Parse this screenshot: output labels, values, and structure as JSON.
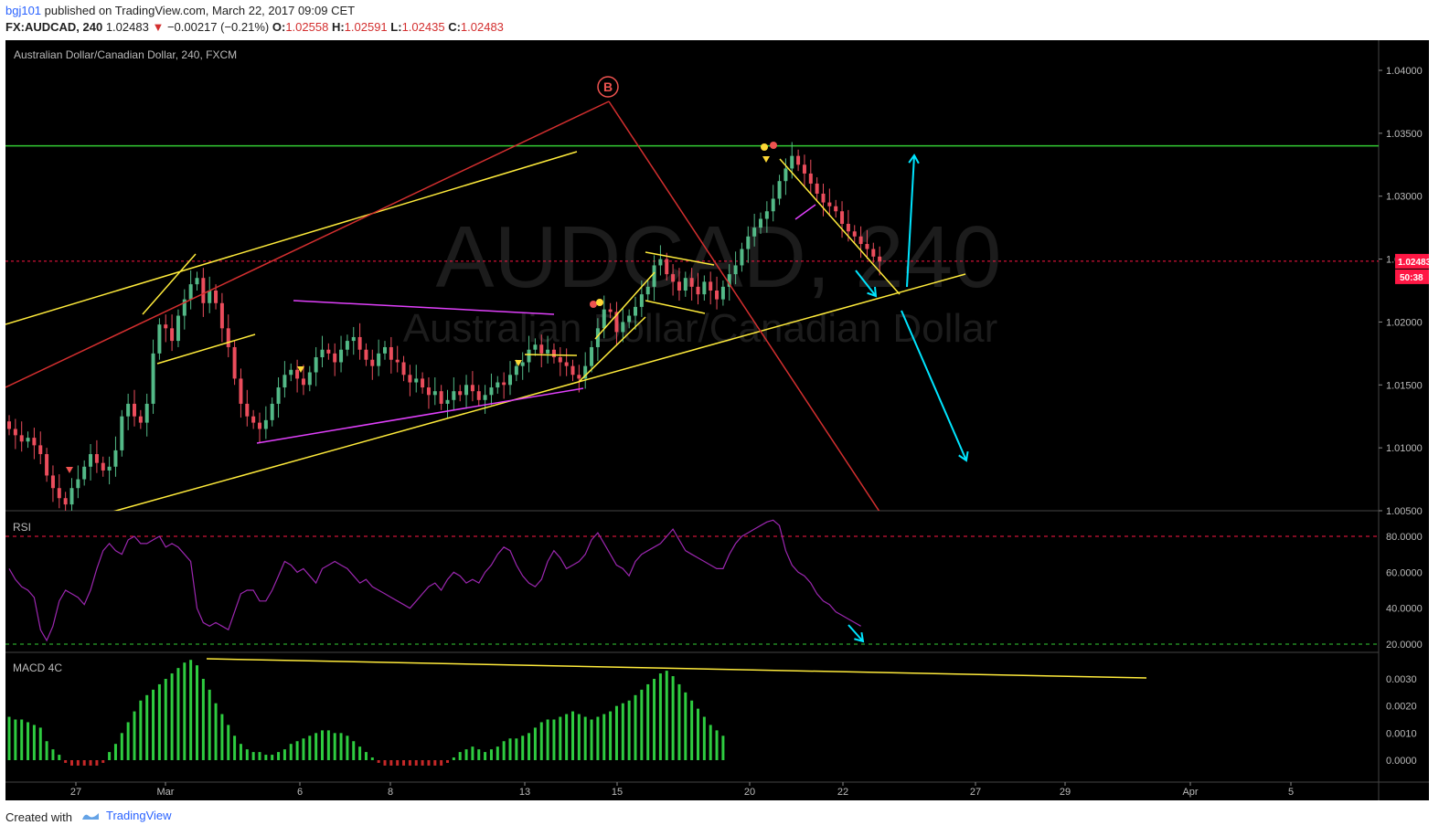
{
  "header": {
    "user": "bgj101",
    "published_text": "published on TradingView.com, March 22, 2017 09:09 CET",
    "symbol": "FX:AUDCAD, 240",
    "last": "1.02483",
    "change": "−0.00217 (−0.21%)",
    "o_label": "O:",
    "o_value": "1.02558",
    "h_label": "H:",
    "h_value": "1.02591",
    "l_label": "L:",
    "l_value": "1.02435",
    "c_label": "C:",
    "c_value": "1.02483"
  },
  "watermark": {
    "big": "AUDCAD, 240",
    "sub": "Australian Dollar/Canadian Dollar"
  },
  "main_pane": {
    "legend": "Australian Dollar/Canadian Dollar, 240, FXCM",
    "price_axis": [
      "1.04000",
      "1.03500",
      "1.03000",
      "1.02500",
      "1.02000",
      "1.01500",
      "1.01000",
      "1.00500"
    ],
    "price_tag": "1.02483",
    "countdown": "50:38",
    "wave_label": "B"
  },
  "rsi_pane": {
    "legend": "RSI",
    "axis": [
      "80.0000",
      "60.0000",
      "40.0000",
      "20.0000"
    ]
  },
  "macd_pane": {
    "legend": "MACD 4C",
    "axis": [
      "0.0030",
      "0.0020",
      "0.0010",
      "0.0000"
    ]
  },
  "time_axis": [
    "27",
    "Mar",
    "6",
    "8",
    "13",
    "15",
    "20",
    "22",
    "27",
    "29",
    "Apr",
    "5"
  ],
  "footer": {
    "created": "Created with",
    "brand": "TradingView"
  },
  "colors": {
    "up": "#53b987",
    "down": "#eb4d5c",
    "support": "#33cc33",
    "rsi": "#9c27b0",
    "annotation": "#ffeb3b",
    "arrow": "#00e5ff"
  },
  "chart_data": {
    "type": "candlestick",
    "title": "Australian Dollar/Canadian Dollar, 240, FXCM",
    "price_ylim": [
      1.005,
      1.04
    ],
    "current_price": 1.02483,
    "resistance_level": 1.034,
    "rsi_levels": [
      80,
      20
    ],
    "rsi_ylim": [
      15,
      90
    ],
    "macd_ylim": [
      -0.0005,
      0.0035
    ],
    "close_series": [
      1.0115,
      1.011,
      1.0105,
      1.0108,
      1.0102,
      1.0095,
      1.0078,
      1.0068,
      1.006,
      1.0055,
      1.0068,
      1.0075,
      1.0085,
      1.0095,
      1.0088,
      1.0082,
      1.0085,
      1.0098,
      1.0125,
      1.0135,
      1.0125,
      1.012,
      1.0135,
      1.0175,
      1.0198,
      1.0195,
      1.0185,
      1.0205,
      1.0218,
      1.023,
      1.0235,
      1.0215,
      1.0225,
      1.0215,
      1.0195,
      1.018,
      1.0155,
      1.0135,
      1.0125,
      1.012,
      1.0115,
      1.0122,
      1.0135,
      1.0148,
      1.0158,
      1.0162,
      1.0155,
      1.015,
      1.016,
      1.0172,
      1.0178,
      1.0175,
      1.0168,
      1.0178,
      1.0185,
      1.0188,
      1.0178,
      1.017,
      1.0165,
      1.0175,
      1.018,
      1.017,
      1.0168,
      1.0158,
      1.0152,
      1.0155,
      1.0148,
      1.0142,
      1.0145,
      1.0135,
      1.0138,
      1.0145,
      1.0142,
      1.015,
      1.0145,
      1.0138,
      1.0142,
      1.0148,
      1.0152,
      1.015,
      1.0158,
      1.0165,
      1.0168,
      1.0178,
      1.0182,
      1.0175,
      1.0178,
      1.0172,
      1.0168,
      1.0165,
      1.0158,
      1.0155,
      1.0165,
      1.018,
      1.0195,
      1.021,
      1.0208,
      1.0192,
      1.02,
      1.0205,
      1.0212,
      1.0222,
      1.0228,
      1.0245,
      1.025,
      1.0238,
      1.0232,
      1.0225,
      1.0235,
      1.0228,
      1.0222,
      1.0232,
      1.0225,
      1.0218,
      1.0228,
      1.0238,
      1.0245,
      1.0258,
      1.0268,
      1.0275,
      1.0282,
      1.0288,
      1.0298,
      1.0312,
      1.0322,
      1.0332,
      1.0325,
      1.0318,
      1.031,
      1.0302,
      1.0295,
      1.0292,
      1.0288,
      1.0278,
      1.0272,
      1.0268,
      1.0262,
      1.0258,
      1.0252,
      1.0248
    ],
    "rsi_series": [
      62,
      56,
      52,
      50,
      46,
      28,
      22,
      30,
      44,
      50,
      48,
      46,
      42,
      50,
      62,
      72,
      76,
      72,
      70,
      78,
      80,
      76,
      76,
      78,
      80,
      74,
      76,
      74,
      70,
      66,
      40,
      32,
      30,
      32,
      30,
      28,
      38,
      48,
      50,
      50,
      44,
      44,
      50,
      58,
      66,
      64,
      60,
      62,
      58,
      54,
      62,
      64,
      66,
      64,
      62,
      58,
      54,
      56,
      52,
      50,
      48,
      46,
      44,
      42,
      40,
      44,
      48,
      52,
      54,
      50,
      56,
      60,
      58,
      54,
      56,
      54,
      60,
      64,
      70,
      74,
      72,
      64,
      58,
      54,
      52,
      56,
      66,
      72,
      68,
      62,
      64,
      66,
      70,
      78,
      82,
      76,
      70,
      64,
      62,
      58,
      66,
      70,
      72,
      74,
      76,
      80,
      84,
      78,
      72,
      70,
      68,
      66,
      64,
      62,
      62,
      70,
      76,
      80,
      82,
      84,
      86,
      88,
      89,
      86,
      72,
      64,
      60,
      58,
      54,
      48,
      44,
      42,
      38,
      36,
      34,
      32,
      30
    ],
    "macd_hist": [
      0.0016,
      0.0015,
      0.0015,
      0.0014,
      0.0013,
      0.0012,
      0.0007,
      0.0004,
      0.0002,
      -0.0001,
      -0.0002,
      -0.0002,
      -0.0002,
      -0.0002,
      -0.0002,
      -0.0001,
      0.0003,
      0.0006,
      0.001,
      0.0014,
      0.0018,
      0.0022,
      0.0024,
      0.0026,
      0.0028,
      0.003,
      0.0032,
      0.0034,
      0.0036,
      0.0037,
      0.0035,
      0.003,
      0.0026,
      0.0021,
      0.0017,
      0.0013,
      0.0009,
      0.0006,
      0.0004,
      0.0003,
      0.0003,
      0.0002,
      0.0002,
      0.0003,
      0.0004,
      0.0006,
      0.0007,
      0.0008,
      0.0009,
      0.001,
      0.0011,
      0.0011,
      0.001,
      0.001,
      0.0009,
      0.0007,
      0.0005,
      0.0003,
      0.0001,
      -0.0001,
      -0.0002,
      -0.0002,
      -0.0002,
      -0.0002,
      -0.0002,
      -0.0002,
      -0.0002,
      -0.0002,
      -0.0002,
      -0.0002,
      -0.0001,
      0.0001,
      0.0003,
      0.0004,
      0.0005,
      0.0004,
      0.0003,
      0.0004,
      0.0005,
      0.0007,
      0.0008,
      0.0008,
      0.0009,
      0.001,
      0.0012,
      0.0014,
      0.0015,
      0.0015,
      0.0016,
      0.0017,
      0.0018,
      0.0017,
      0.0016,
      0.0015,
      0.0016,
      0.0017,
      0.0018,
      0.002,
      0.0021,
      0.0022,
      0.0024,
      0.0026,
      0.0028,
      0.003,
      0.0032,
      0.0033,
      0.0031,
      0.0028,
      0.0025,
      0.0022,
      0.0019,
      0.0016,
      0.0013,
      0.0011,
      0.0009
    ]
  }
}
